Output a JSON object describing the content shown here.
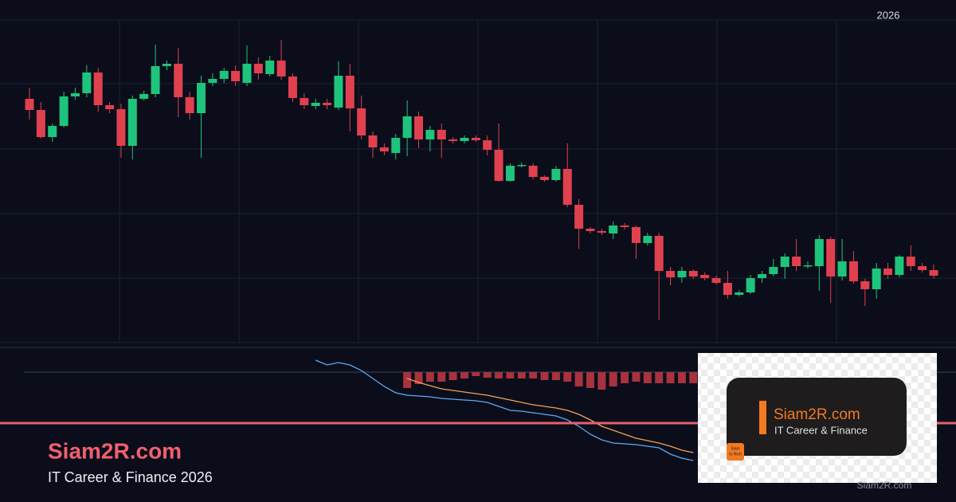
{
  "chart_data": {
    "type": "candlestick",
    "year_label": "2026",
    "ylim": [
      0,
      405
    ],
    "ygrid": [
      0,
      81,
      162,
      243,
      325,
      405
    ],
    "grid": true,
    "up_color": "#1fc47c",
    "down_color": "#e0414f",
    "open": [
      306,
      292,
      258,
      272,
      309,
      313,
      339,
      298,
      293,
      247,
      306,
      312,
      347,
      350,
      308,
      288,
      326,
      331,
      341,
      326,
      350,
      337,
      354,
      334,
      307,
      297,
      301,
      295,
      335,
      294,
      260,
      245,
      238,
      257,
      284,
      255,
      267,
      255,
      253,
      257,
      254,
      242,
      203,
      222,
      222,
      208,
      204,
      218,
      173,
      143,
      140,
      137,
      147,
      145,
      125,
      134,
      90,
      82,
      90,
      85,
      81,
      75,
      60,
      63,
      81,
      86,
      95,
      108,
      96,
      96,
      130,
      83,
      102,
      77,
      67,
      93,
      85,
      108,
      96,
      91
    ],
    "high": [
      320,
      302,
      275,
      315,
      320,
      348,
      345,
      302,
      300,
      310,
      316,
      374,
      354,
      370,
      315,
      335,
      338,
      345,
      348,
      373,
      358,
      360,
      380,
      338,
      313,
      306,
      306,
      353,
      350,
      310,
      265,
      250,
      262,
      304,
      290,
      272,
      275,
      258,
      260,
      260,
      260,
      275,
      225,
      226,
      225,
      210,
      222,
      250,
      180,
      145,
      143,
      152,
      150,
      147,
      138,
      138,
      95,
      95,
      92,
      88,
      84,
      90,
      66,
      85,
      90,
      105,
      112,
      130,
      102,
      135,
      133,
      130,
      115,
      80,
      100,
      100,
      110,
      122,
      100,
      98
    ],
    "low": [
      280,
      256,
      252,
      270,
      305,
      308,
      290,
      288,
      232,
      230,
      304,
      308,
      342,
      283,
      280,
      232,
      322,
      326,
      322,
      322,
      330,
      334,
      330,
      302,
      293,
      293,
      293,
      292,
      265,
      255,
      232,
      235,
      230,
      234,
      244,
      240,
      232,
      250,
      250,
      252,
      235,
      202,
      202,
      220,
      205,
      202,
      202,
      170,
      118,
      137,
      135,
      130,
      142,
      105,
      122,
      28,
      72,
      75,
      80,
      78,
      73,
      55,
      58,
      61,
      75,
      83,
      80,
      90,
      93,
      65,
      50,
      78,
      74,
      46,
      55,
      80,
      82,
      90,
      88,
      80
    ],
    "close": [
      292,
      258,
      272,
      309,
      313,
      339,
      298,
      293,
      247,
      306,
      312,
      347,
      350,
      308,
      288,
      326,
      331,
      341,
      328,
      350,
      338,
      354,
      334,
      307,
      298,
      301,
      298,
      335,
      294,
      260,
      245,
      240,
      257,
      284,
      255,
      267,
      255,
      253,
      257,
      254,
      242,
      203,
      222,
      223,
      208,
      204,
      218,
      173,
      143,
      140,
      138,
      147,
      145,
      125,
      134,
      90,
      82,
      90,
      83,
      81,
      75,
      60,
      63,
      81,
      86,
      95,
      108,
      96,
      97,
      130,
      83,
      102,
      77,
      67,
      93,
      85,
      108,
      96,
      91,
      84
    ],
    "macd_ylim": [
      -163,
      30
    ],
    "macd": {
      "color": "#5fa8f0",
      "values": [
        null,
        null,
        null,
        null,
        null,
        null,
        null,
        null,
        null,
        null,
        null,
        null,
        null,
        null,
        null,
        null,
        null,
        null,
        null,
        null,
        null,
        null,
        null,
        null,
        null,
        15,
        9,
        12,
        9,
        2,
        -8,
        -18,
        -26,
        -29,
        -30,
        -31,
        -33,
        -34,
        -35,
        -36,
        -38,
        -43,
        -48,
        -49,
        -51,
        -53,
        -55,
        -60,
        -68,
        -78,
        -85,
        -89,
        -90,
        -91,
        -93,
        -95,
        -103,
        -108,
        -111,
        null,
        null,
        null,
        null,
        null,
        null,
        null,
        null,
        null,
        null,
        null,
        null,
        null,
        null,
        null,
        null,
        null,
        null,
        null,
        null,
        null
      ]
    },
    "signal": {
      "color": "#f0a25a",
      "values": [
        null,
        null,
        null,
        null,
        null,
        null,
        null,
        null,
        null,
        null,
        null,
        null,
        null,
        null,
        null,
        null,
        null,
        null,
        null,
        null,
        null,
        null,
        null,
        null,
        null,
        null,
        null,
        null,
        null,
        null,
        null,
        null,
        null,
        -8,
        -13,
        -17,
        -21,
        -23,
        -25,
        -27,
        -29,
        -32,
        -35,
        -38,
        -41,
        -43,
        -45,
        -48,
        -53,
        -60,
        -68,
        -73,
        -78,
        -83,
        -86,
        -89,
        -93,
        -98,
        -101,
        null,
        null,
        null,
        null,
        null,
        null,
        null,
        null,
        null,
        null,
        null,
        null,
        null,
        null,
        null,
        null,
        null,
        null,
        null,
        null,
        null
      ]
    },
    "histogram": {
      "color": "#a8323e",
      "values": [
        null,
        null,
        null,
        null,
        null,
        null,
        null,
        null,
        null,
        null,
        null,
        null,
        null,
        null,
        null,
        null,
        null,
        null,
        null,
        null,
        null,
        null,
        null,
        null,
        null,
        null,
        null,
        null,
        null,
        null,
        null,
        null,
        null,
        -20,
        -15,
        -12,
        -12,
        -10,
        -8,
        -5,
        -7,
        -8,
        -8,
        -8,
        -8,
        -10,
        -10,
        -12,
        -18,
        -20,
        -22,
        -18,
        -14,
        -12,
        -14,
        -14,
        -14,
        -14,
        -14,
        null,
        null,
        null,
        null,
        null,
        null,
        null,
        null,
        null,
        null,
        null,
        null,
        null,
        null,
        null,
        null,
        null,
        null,
        null,
        null,
        null
      ]
    }
  },
  "brand": {
    "title": "Siam2R.com",
    "subtitle": "IT Career & Finance 2026"
  },
  "logo": {
    "title": "Siam2R.com",
    "subtitle": "IT Career & Finance",
    "badge_top": "Siam",
    "badge_bottom": "to Rich",
    "watermark": "Siam2R.com"
  }
}
